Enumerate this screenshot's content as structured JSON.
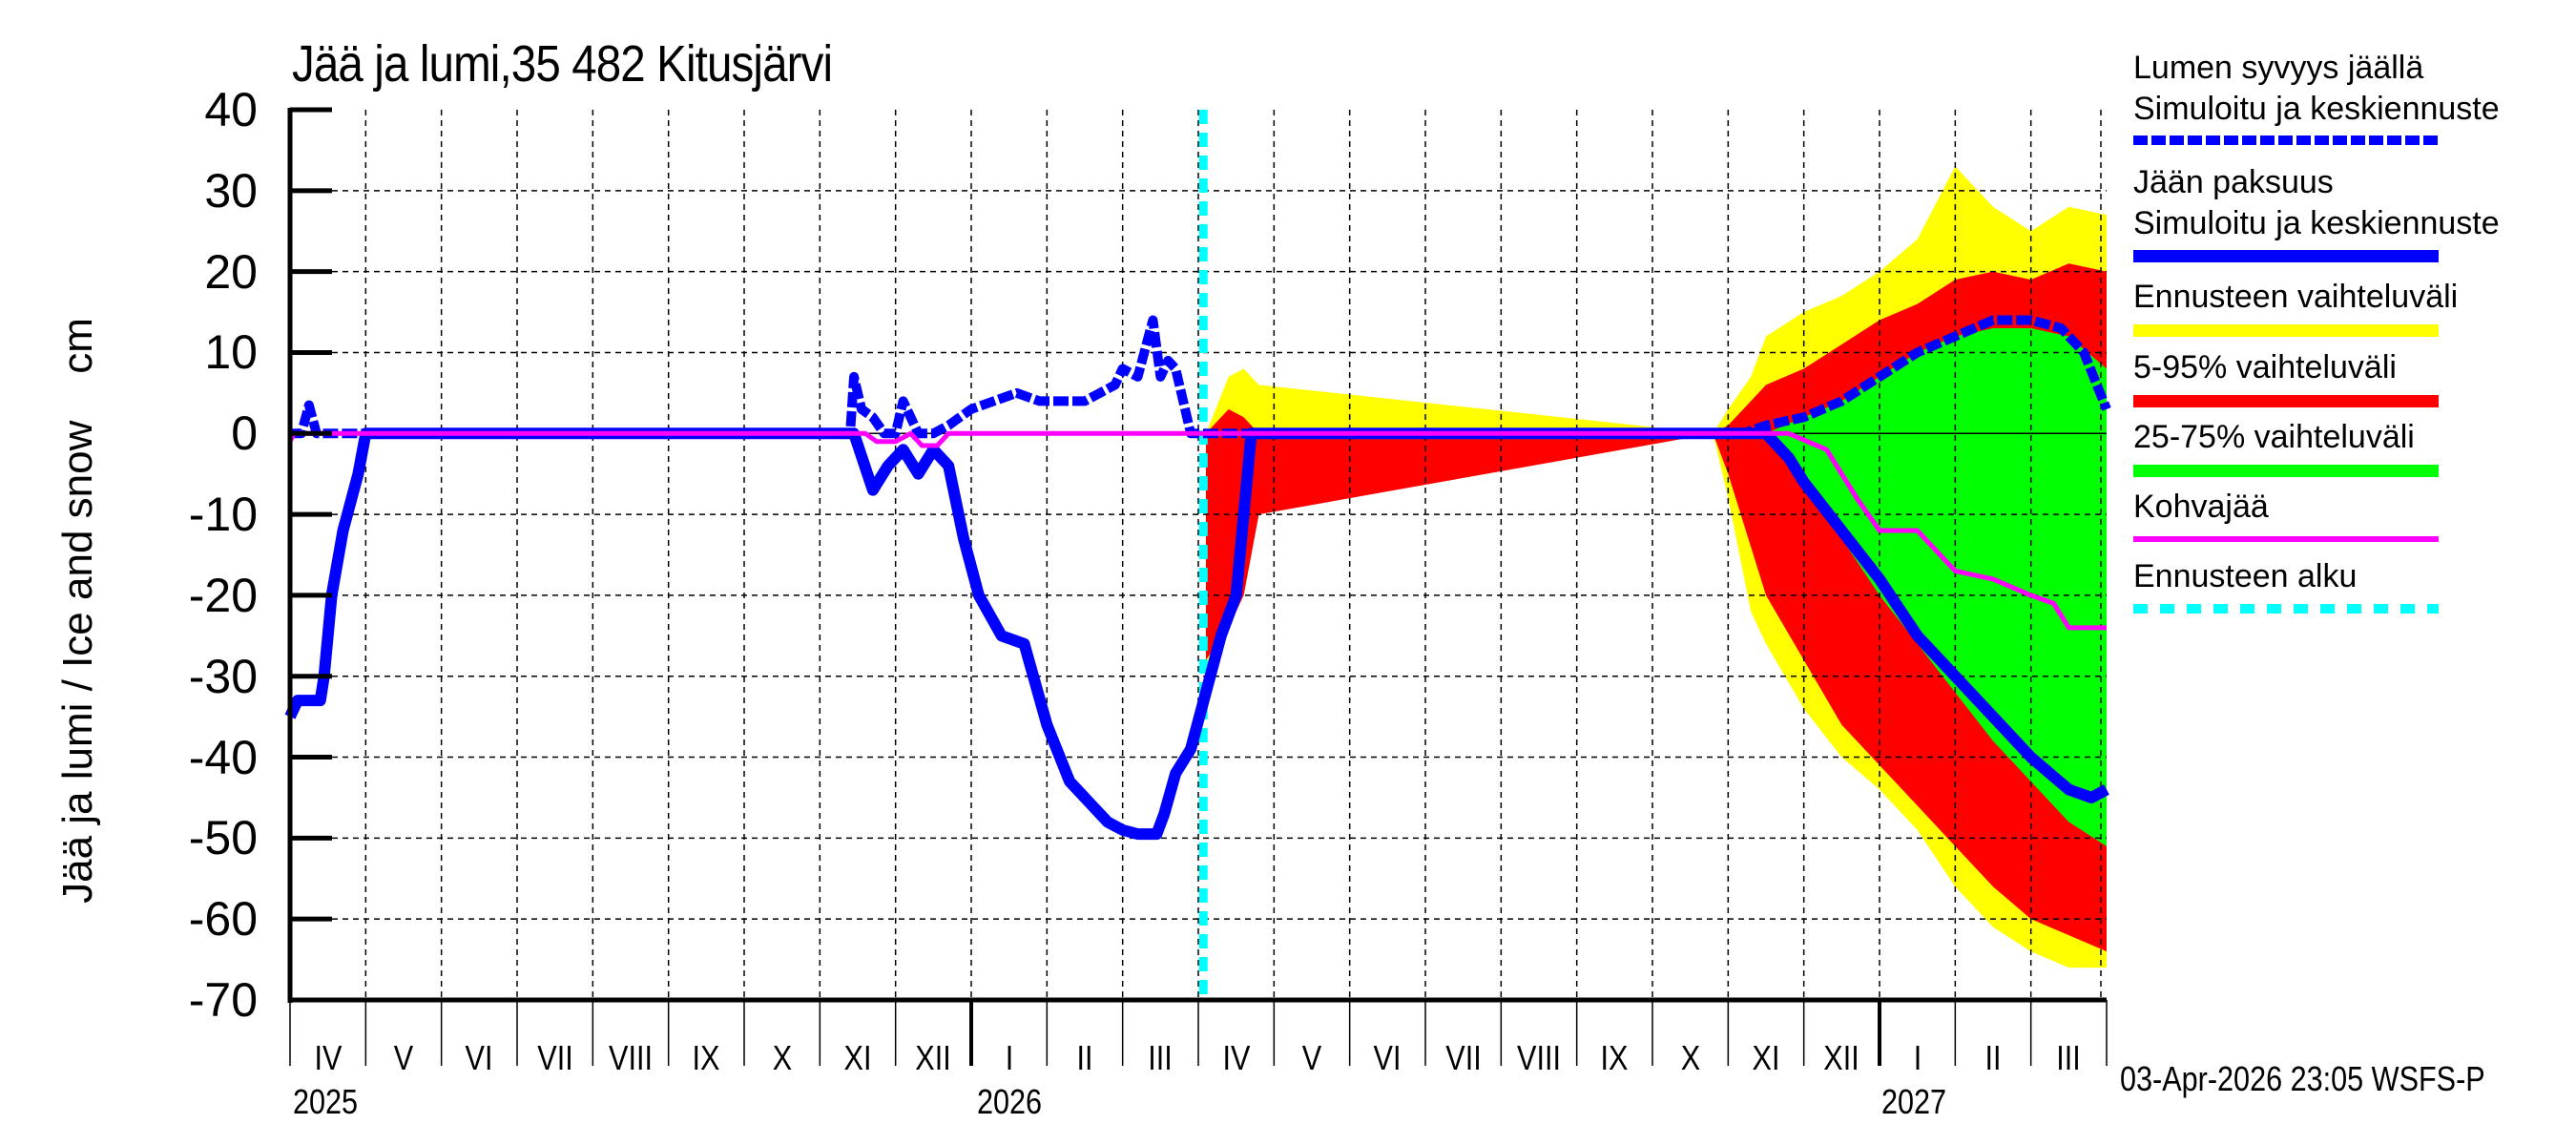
{
  "chart": {
    "title": "Jää ja lumi,35 482 Kitusjärvi",
    "ylabel": "Jää ja lumi / Ice and snow    cm",
    "timestamp": "03-Apr-2026 23:05 WSFS-P",
    "yticks": [
      "40",
      "30",
      "20",
      "10",
      "0",
      "-10",
      "-20",
      "-30",
      "-40",
      "-50",
      "-60",
      "-70"
    ],
    "months": [
      "IV",
      "V",
      "VI",
      "VII",
      "VIII",
      "IX",
      "X",
      "XI",
      "XII",
      "I",
      "II",
      "III",
      "IV",
      "V",
      "VI",
      "VII",
      "VIII",
      "IX",
      "X",
      "XI",
      "XII",
      "I",
      "II",
      "III"
    ],
    "years": [
      "2025",
      "2026",
      "2027"
    ]
  },
  "legend": {
    "items": [
      {
        "line1": "Lumen syvyys jäällä",
        "line2": "Simuloitu ja keskiennuste",
        "color": "#0000ff",
        "style": "dashed"
      },
      {
        "line1": "Jään paksuus",
        "line2": "Simuloitu ja keskiennuste",
        "color": "#0000ff",
        "style": "solid"
      },
      {
        "line1": "Ennusteen vaihteluväli",
        "color": "#ffff00",
        "style": "band"
      },
      {
        "line1": "5-95% vaihteluväli",
        "color": "#ff0000",
        "style": "band"
      },
      {
        "line1": "25-75% vaihteluväli",
        "color": "#00ff00",
        "style": "band"
      },
      {
        "line1": "Kohvajää",
        "color": "#ff00ff",
        "style": "thin"
      },
      {
        "line1": "Ennusteen alku",
        "color": "#00ffff",
        "style": "dotted"
      }
    ]
  },
  "chart_data": {
    "type": "line",
    "title": "Jää ja lumi,35 482 Kitusjärvi",
    "xlabel": "",
    "ylabel": "Jää ja lumi / Ice and snow cm",
    "ylim": [
      -70,
      40
    ],
    "xrange": [
      "2025-04-01",
      "2027-04-01"
    ],
    "grid": true,
    "legend_position": "right",
    "forecast_start": "2026-04-03",
    "x_month_index_note": "x = months since 2025-04-01",
    "series": [
      {
        "name": "Lumen syvyys jäällä (simuloitu ja keskiennuste)",
        "style": "dashed",
        "color": "#0000ff",
        "x": [
          0.0,
          0.15,
          0.25,
          0.35,
          0.5,
          7.4,
          7.45,
          7.55,
          7.7,
          7.85,
          8.0,
          8.1,
          8.3,
          8.5,
          8.7,
          9.0,
          9.3,
          9.6,
          9.9,
          10.0,
          10.5,
          10.9,
          11.0,
          11.2,
          11.4,
          11.5,
          11.6,
          11.7,
          11.9,
          12.0,
          12.1,
          19.2,
          19.5,
          20.0,
          20.5,
          21.0,
          21.5,
          22.0,
          22.5,
          23.0,
          23.4,
          23.7,
          24.0
        ],
        "y": [
          0,
          0,
          3.5,
          0,
          0,
          0,
          7,
          3,
          2,
          0,
          0,
          4,
          0,
          0,
          1,
          3,
          4,
          5,
          4,
          4,
          4,
          6,
          8,
          7,
          14,
          7,
          9,
          8,
          0,
          0,
          0,
          0,
          1,
          2,
          4,
          7,
          10,
          12,
          14,
          14,
          13,
          10,
          3
        ]
      },
      {
        "name": "Jään paksuus (simuloitu ja keskiennuste)",
        "style": "solid",
        "color": "#0000ff",
        "x": [
          0.0,
          0.1,
          0.4,
          0.45,
          0.55,
          0.7,
          0.9,
          1.0,
          1.05,
          7.3,
          7.45,
          7.7,
          7.9,
          8.1,
          8.3,
          8.5,
          8.7,
          8.9,
          9.1,
          9.4,
          9.7,
          10.0,
          10.3,
          10.6,
          10.8,
          11.0,
          11.2,
          11.45,
          11.55,
          11.7,
          11.9,
          12.1,
          12.3,
          12.5,
          12.6,
          12.7,
          19.5,
          19.8,
          20.0,
          20.5,
          21.0,
          21.5,
          22.0,
          22.5,
          23.0,
          23.5,
          23.8,
          24.0
        ],
        "y": [
          -35,
          -33,
          -33,
          -30,
          -20,
          -12,
          -5,
          0,
          0,
          0,
          0,
          -7,
          -4,
          -2,
          -5,
          -2,
          -4,
          -13,
          -20,
          -25,
          -26,
          -36,
          -43,
          -46,
          -48,
          -49,
          -49.5,
          -49.5,
          -47,
          -42,
          -39,
          -32,
          -25,
          -20,
          -10,
          0,
          0,
          -3,
          -6,
          -12,
          -18,
          -25,
          -30,
          -35,
          -40,
          -44,
          -45,
          -44
        ]
      },
      {
        "name": "Kohvajää",
        "style": "solid",
        "color": "#ff00ff",
        "x": [
          0.0,
          0.05,
          0.1,
          7.6,
          7.75,
          8.0,
          8.2,
          8.35,
          8.55,
          8.7,
          19.8,
          20.3,
          20.7,
          21.0,
          21.5,
          22.0,
          22.5,
          23.0,
          23.3,
          23.5,
          24.0
        ],
        "y": [
          -1,
          0,
          0,
          0,
          -1,
          -1,
          0,
          -1.5,
          -1.5,
          0,
          0,
          -2,
          -8,
          -12,
          -12,
          -17,
          -18,
          -20,
          -21,
          -24,
          -24
        ]
      }
    ],
    "bands": [
      {
        "name": "Ennusteen vaihteluväli",
        "color": "#ffff00",
        "x": [
          12.1,
          12.4,
          12.6,
          12.8,
          18.8,
          19.0,
          19.3,
          19.5,
          20.0,
          20.5,
          21.0,
          21.5,
          22.0,
          22.5,
          23.0,
          23.5,
          24.0
        ],
        "upper": [
          0,
          7,
          8,
          6,
          0,
          3,
          7,
          12,
          15,
          17,
          20,
          24,
          33,
          28,
          25,
          28,
          27
        ],
        "lower": [
          -30,
          -20,
          -14,
          -6,
          0,
          -8,
          -22,
          -26,
          -34,
          -40,
          -44,
          -49,
          -56,
          -61,
          -64,
          -66,
          -66
        ]
      },
      {
        "name": "5-95% vaihteluväli",
        "color": "#ff0000",
        "x": [
          12.1,
          12.4,
          12.6,
          12.8,
          18.8,
          19.0,
          19.3,
          19.5,
          20.0,
          20.5,
          21.0,
          21.5,
          22.0,
          22.5,
          23.0,
          23.5,
          24.0
        ],
        "upper": [
          0,
          3,
          2,
          0,
          0,
          1,
          4,
          6,
          8,
          11,
          14,
          16,
          19,
          20,
          19,
          21,
          20
        ],
        "lower": [
          -28,
          -24,
          -20,
          -10,
          0,
          -5,
          -14,
          -20,
          -28,
          -36,
          -41,
          -46,
          -51,
          -56,
          -60,
          -62,
          -64
        ]
      },
      {
        "name": "25-75% vaihteluväli",
        "color": "#00ff00",
        "x": [
          19.5,
          20.0,
          20.5,
          21.0,
          21.5,
          22.0,
          22.5,
          23.0,
          23.5,
          24.0
        ],
        "upper": [
          0,
          2,
          4,
          7,
          10,
          12,
          13,
          13,
          12,
          8
        ],
        "lower": [
          0,
          -6,
          -13,
          -20,
          -26,
          -32,
          -38,
          -43,
          -48,
          -51
        ]
      }
    ]
  }
}
